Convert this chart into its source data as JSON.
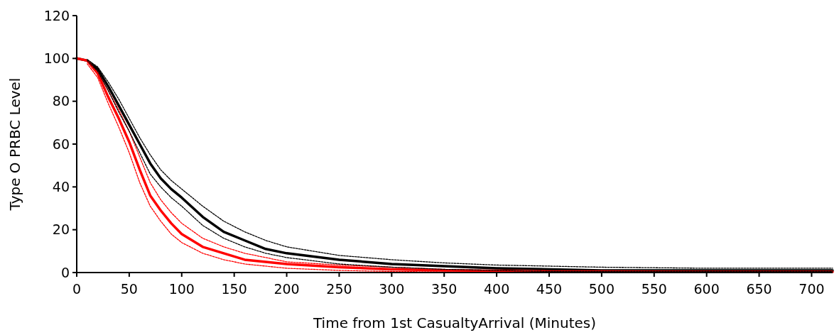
{
  "chart_data": {
    "type": "line",
    "xlabel": "Time from 1st CasualtyArrival (Minutes)",
    "ylabel": "Type O PRBC Level",
    "x": [
      0,
      10,
      20,
      30,
      40,
      50,
      60,
      70,
      80,
      90,
      100,
      120,
      140,
      160,
      180,
      200,
      250,
      300,
      350,
      400,
      450,
      500,
      600,
      720
    ],
    "xlim": [
      0,
      720
    ],
    "xticks": [
      0,
      50,
      100,
      150,
      200,
      250,
      300,
      350,
      400,
      450,
      500,
      550,
      600,
      650,
      700
    ],
    "ylim": [
      0,
      120
    ],
    "yticks": [
      0,
      20,
      40,
      60,
      80,
      100,
      120
    ],
    "grid": false,
    "marker": "none",
    "series": [
      {
        "color": "#000000",
        "line_style": "solid",
        "values": [
          100,
          99,
          95,
          87,
          78,
          69,
          60,
          51,
          44,
          39,
          35,
          26,
          19,
          15,
          11,
          9,
          6,
          4,
          3,
          2,
          1.5,
          1,
          1,
          1
        ]
      },
      {
        "color": "#ff0000",
        "line_style": "solid",
        "values": [
          100,
          99,
          93,
          82,
          72,
          61,
          48,
          36,
          29,
          23,
          18,
          12,
          9,
          6,
          5,
          4,
          2.5,
          1.5,
          1,
          0.8,
          0.5,
          0.5,
          0.3,
          0.3
        ]
      },
      {
        "color": "#ff0000",
        "line_style": "dashed",
        "x": [
          10,
          20,
          30,
          40,
          50,
          60,
          70,
          80,
          90,
          100,
          120,
          140,
          160,
          180,
          200,
          250,
          300,
          350,
          400,
          450,
          500,
          600,
          720
        ],
        "values": [
          98.5,
          94,
          85,
          76,
          66,
          54,
          42,
          34,
          28,
          23,
          16,
          12,
          9,
          7,
          5,
          3.5,
          2.5,
          1.5,
          1,
          0.8,
          0.5,
          0.5,
          0.5
        ]
      },
      {
        "color": "#ff0000",
        "line_style": "dashed",
        "x": [
          10,
          20,
          30,
          40,
          50,
          60,
          70,
          80,
          90,
          100,
          120,
          140,
          160,
          180,
          200,
          250,
          300,
          350,
          400,
          450,
          500,
          600,
          720
        ],
        "values": [
          97.5,
          91,
          79,
          68,
          56,
          42,
          31,
          24,
          18,
          14,
          9,
          6,
          4,
          3,
          2,
          1,
          0.5,
          0.3,
          0.2,
          0,
          0,
          0,
          0
        ]
      },
      {
        "color": "#000000",
        "line_style": "dashed",
        "x": [
          10,
          20,
          30,
          40,
          50,
          60,
          70,
          80,
          90,
          100,
          120,
          140,
          160,
          180,
          200,
          250,
          300,
          350,
          400,
          450,
          500,
          600,
          720
        ],
        "values": [
          99.5,
          96,
          89,
          81,
          72,
          63,
          55,
          48,
          43,
          39,
          31,
          24,
          19,
          15,
          12,
          8,
          6,
          4.5,
          3.5,
          3,
          2.5,
          2,
          2
        ]
      },
      {
        "color": "#000000",
        "line_style": "dashed",
        "x": [
          10,
          20,
          30,
          40,
          50,
          60,
          70,
          80,
          90,
          100,
          120,
          140,
          160,
          180,
          200,
          250,
          300,
          350,
          400,
          450,
          500,
          600,
          720
        ],
        "values": [
          99,
          94,
          85,
          75,
          66,
          56,
          46,
          40,
          35,
          31,
          22,
          16,
          12,
          9,
          7,
          4,
          2.5,
          1.5,
          1,
          0.5,
          0.5,
          0.5,
          0.5
        ]
      }
    ]
  }
}
